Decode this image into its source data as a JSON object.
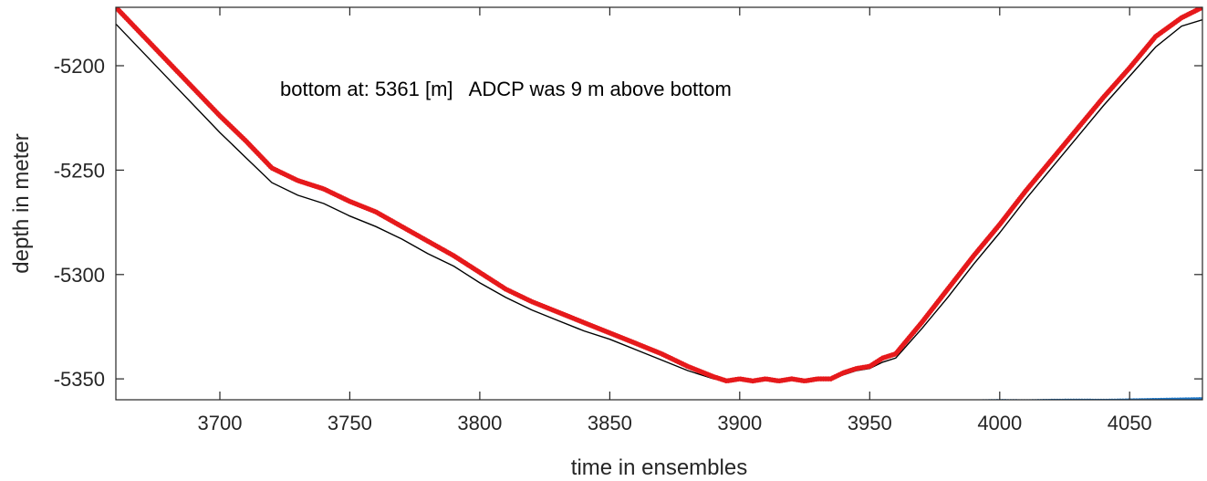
{
  "chart_data": {
    "type": "line",
    "title": "",
    "xlabel": "time in ensembles",
    "ylabel": "depth in meter",
    "xlim": [
      3660,
      4078
    ],
    "ylim": [
      -5360,
      -5172
    ],
    "xticks": [
      3700,
      3750,
      3800,
      3850,
      3900,
      3950,
      4000,
      4050
    ],
    "yticks": [
      -5200,
      -5250,
      -5300,
      -5350
    ],
    "grid": false,
    "annotation": "bottom at: 5361 [m]   ADCP was 9 m above bottom",
    "series": [
      {
        "style": "red-dotted",
        "color": "#e6191b",
        "x": [
          3660,
          3680,
          3700,
          3710,
          3720,
          3730,
          3740,
          3750,
          3760,
          3770,
          3780,
          3790,
          3800,
          3810,
          3820,
          3830,
          3840,
          3850,
          3860,
          3870,
          3880,
          3890,
          3895,
          3900,
          3905,
          3910,
          3915,
          3920,
          3925,
          3930,
          3935,
          3940,
          3945,
          3950,
          3955,
          3960,
          3970,
          3980,
          3990,
          4000,
          4010,
          4020,
          4030,
          4040,
          4050,
          4060,
          4070,
          4078
        ],
        "y": [
          -5172,
          -5198,
          -5224,
          -5236,
          -5249,
          -5255,
          -5259,
          -5265,
          -5270,
          -5277,
          -5284,
          -5291,
          -5299,
          -5307,
          -5313,
          -5318,
          -5323,
          -5328,
          -5333,
          -5338,
          -5344,
          -5349,
          -5351,
          -5350,
          -5351,
          -5350,
          -5351,
          -5350,
          -5351,
          -5350,
          -5350,
          -5347,
          -5345,
          -5344,
          -5340,
          -5338,
          -5323,
          -5307,
          -5291,
          -5276,
          -5260,
          -5245,
          -5230,
          -5215,
          -5201,
          -5186,
          -5177,
          -5172
        ]
      },
      {
        "style": "black-line",
        "color": "#000000",
        "x": [
          3660,
          3680,
          3700,
          3710,
          3720,
          3730,
          3740,
          3750,
          3760,
          3770,
          3780,
          3790,
          3800,
          3810,
          3820,
          3830,
          3840,
          3850,
          3860,
          3870,
          3880,
          3890,
          3895,
          3900,
          3905,
          3910,
          3915,
          3920,
          3925,
          3930,
          3935,
          3940,
          3945,
          3950,
          3955,
          3960,
          3970,
          3980,
          3990,
          4000,
          4010,
          4020,
          4030,
          4040,
          4050,
          4060,
          4070,
          4078
        ],
        "y": [
          -5180,
          -5206,
          -5232,
          -5244,
          -5256,
          -5262,
          -5266,
          -5272,
          -5277,
          -5283,
          -5290,
          -5296,
          -5304,
          -5311,
          -5317,
          -5322,
          -5327,
          -5331,
          -5336,
          -5341,
          -5346,
          -5350,
          -5351,
          -5350,
          -5351,
          -5350,
          -5351,
          -5350,
          -5351,
          -5350,
          -5350,
          -5348,
          -5346,
          -5345,
          -5342,
          -5340,
          -5326,
          -5311,
          -5295,
          -5280,
          -5264,
          -5249,
          -5234,
          -5219,
          -5205,
          -5191,
          -5181,
          -5178
        ]
      },
      {
        "style": "blue-line",
        "color": "#0b1fa6",
        "x": [
          3660,
          4078
        ],
        "y": [
          -5361,
          -5361
        ]
      },
      {
        "style": "light-blue-dots-left",
        "color": "#1f78c8",
        "x": [
          3660,
          3680,
          3700,
          3720,
          3740,
          3760,
          3780,
          3800,
          3808
        ],
        "y": [
          -5361,
          -5361,
          -5361.3,
          -5361,
          -5361.2,
          -5361.5,
          -5361,
          -5361.4,
          -5361
        ]
      },
      {
        "style": "light-blue-dots-right",
        "color": "#1f78c8",
        "x": [
          3981,
          3990,
          4000,
          4010,
          4020,
          4030,
          4040,
          4050,
          4060,
          4070,
          4078
        ],
        "y": [
          -5361,
          -5360.7,
          -5360.5,
          -5360.6,
          -5360.4,
          -5360.3,
          -5360.4,
          -5360.2,
          -5360,
          -5359.8,
          -5359.6
        ]
      }
    ]
  }
}
